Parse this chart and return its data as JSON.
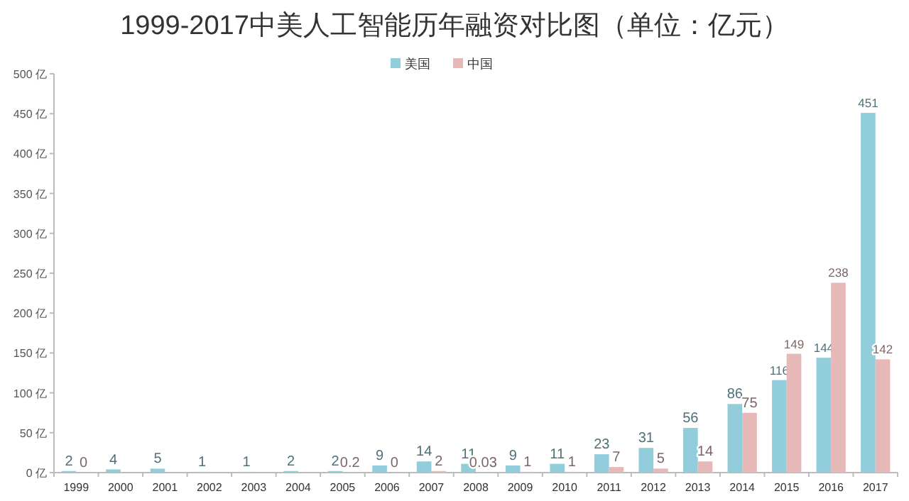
{
  "chart_data": {
    "type": "bar",
    "title": "1999-2017中美人工智能历年融资对比图（单位：亿元）",
    "categories": [
      "1999",
      "2000",
      "2001",
      "2002",
      "2003",
      "2004",
      "2005",
      "2006",
      "2007",
      "2008",
      "2009",
      "2010",
      "2011",
      "2012",
      "2013",
      "2014",
      "2015",
      "2016",
      "2017"
    ],
    "series": [
      {
        "name": "美国",
        "color": "#92cddc",
        "values": [
          2,
          4,
          5,
          1,
          1,
          2,
          2,
          9,
          14,
          11,
          9,
          11,
          23,
          31,
          56,
          86,
          116,
          144,
          451
        ]
      },
      {
        "name": "中国",
        "color": "#e6b8b7",
        "values": [
          0,
          null,
          null,
          null,
          null,
          null,
          0.2,
          0,
          2,
          0.03,
          1,
          1,
          7,
          5,
          14,
          75,
          149,
          238,
          142
        ]
      }
    ],
    "ylim": [
      0,
      500
    ],
    "yticks": [
      {
        "value": 0,
        "label": "0 亿"
      },
      {
        "value": 50,
        "label": "50 亿"
      },
      {
        "value": 100,
        "label": "100 亿"
      },
      {
        "value": 150,
        "label": "150 亿"
      },
      {
        "value": 200,
        "label": "200 亿"
      },
      {
        "value": 250,
        "label": "250 亿"
      },
      {
        "value": 300,
        "label": "300 亿"
      },
      {
        "value": 350,
        "label": "350 亿"
      },
      {
        "value": 400,
        "label": "400 亿"
      },
      {
        "value": 450,
        "label": "450 亿"
      },
      {
        "value": 500,
        "label": "500 亿"
      }
    ],
    "data_labels": true,
    "legend": "top",
    "grid": false
  }
}
